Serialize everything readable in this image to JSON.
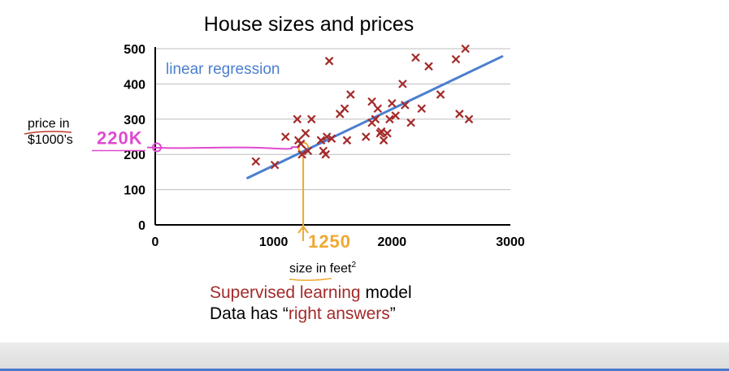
{
  "chart_data": {
    "type": "scatter",
    "title": "House sizes and prices",
    "ylabel_line1": "price in",
    "ylabel_line2": "$1000’s",
    "xlabel": "size in feet",
    "xlabel_sup": "2",
    "xlim": [
      0,
      3000
    ],
    "ylim": [
      0,
      500
    ],
    "xticks": [
      0,
      1000,
      2000,
      3000
    ],
    "yticks": [
      0,
      100,
      200,
      300,
      400,
      500
    ],
    "grid": true,
    "marker_color": "#a32a2a",
    "points": [
      [
        850,
        180
      ],
      [
        1010,
        170
      ],
      [
        1100,
        250
      ],
      [
        1200,
        300
      ],
      [
        1210,
        240
      ],
      [
        1230,
        230
      ],
      [
        1240,
        200
      ],
      [
        1270,
        260
      ],
      [
        1290,
        210
      ],
      [
        1320,
        300
      ],
      [
        1400,
        240
      ],
      [
        1420,
        210
      ],
      [
        1440,
        200
      ],
      [
        1450,
        250
      ],
      [
        1490,
        245
      ],
      [
        1470,
        465
      ],
      [
        1560,
        315
      ],
      [
        1600,
        330
      ],
      [
        1620,
        240
      ],
      [
        1650,
        370
      ],
      [
        1780,
        250
      ],
      [
        1830,
        290
      ],
      [
        1830,
        350
      ],
      [
        1860,
        300
      ],
      [
        1880,
        330
      ],
      [
        1900,
        260
      ],
      [
        1910,
        265
      ],
      [
        1930,
        240
      ],
      [
        1960,
        260
      ],
      [
        1980,
        300
      ],
      [
        2000,
        345
      ],
      [
        2030,
        310
      ],
      [
        2090,
        400
      ],
      [
        2110,
        340
      ],
      [
        2160,
        290
      ],
      [
        2200,
        475
      ],
      [
        2250,
        330
      ],
      [
        2310,
        450
      ],
      [
        2410,
        370
      ],
      [
        2540,
        470
      ],
      [
        2570,
        315
      ],
      [
        2620,
        500
      ],
      [
        2650,
        300
      ]
    ],
    "series": [
      {
        "name": "linear regression",
        "type": "line",
        "color": "#4a7fcf",
        "x": [
          780,
          2930
        ],
        "y": [
          133,
          478
        ]
      }
    ],
    "annotations": {
      "price_mark": "220K",
      "size_mark": "1250",
      "query_x": 1250,
      "query_y": 220,
      "pink_color": "#e04ad0",
      "orange_color": "#f0a830"
    }
  },
  "text": {
    "supervised_red": "Supervised learning",
    "supervised_rest": " model",
    "data_has": "Data has “",
    "right_answers": "right answers",
    "close_quote": "”"
  }
}
